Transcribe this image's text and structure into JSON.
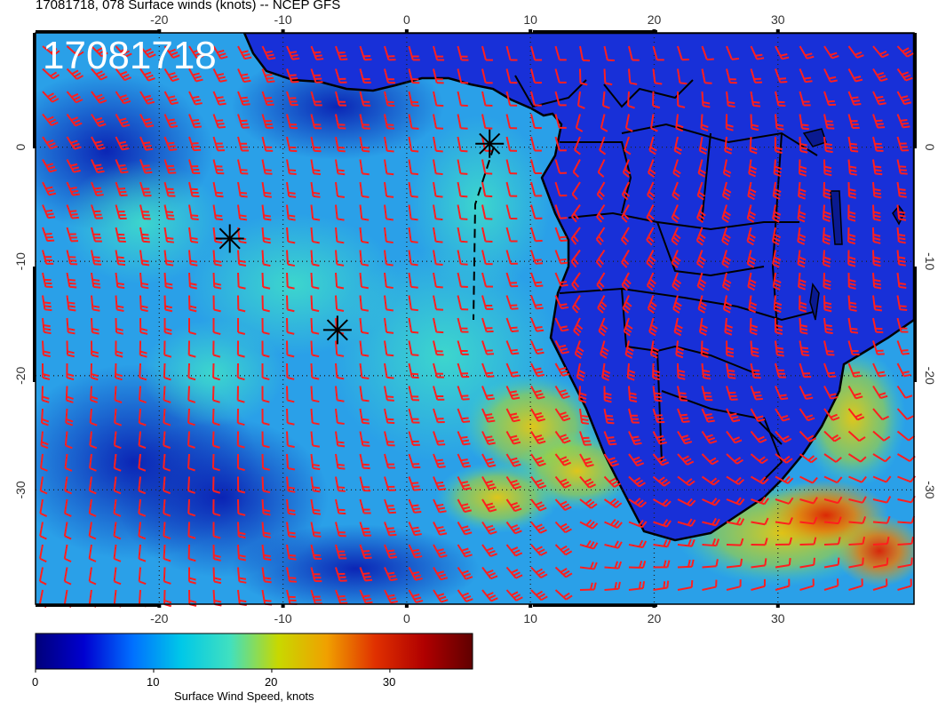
{
  "title": "17081718, 078 Surface winds (knots) -- NCEP GFS",
  "stamp": "17081718",
  "map": {
    "lon_range": [
      -30,
      41
    ],
    "lat_range": [
      -40,
      10
    ],
    "lon_ticks": [
      "-20",
      "-10",
      "0",
      "10",
      "20",
      "30"
    ],
    "lon_tick_values": [
      -20,
      -10,
      0,
      10,
      20,
      30
    ],
    "lat_ticks": [
      "0",
      "-10",
      "-20",
      "-30"
    ],
    "lat_tick_values": [
      0,
      -10,
      -20,
      -30
    ],
    "markers": [
      {
        "lon": 6.7,
        "lat": 0.3
      },
      {
        "lon": -14.3,
        "lat": -8.0
      },
      {
        "lon": -5.6,
        "lat": -16.0
      }
    ],
    "wind_barb_color": "#ff1e1e",
    "land_color": "#1028d8",
    "ocean_color": "#2aa8e8"
  },
  "colorbar": {
    "title": "Surface Wind Speed, knots",
    "labels": [
      "0",
      "10",
      "20",
      "30"
    ],
    "label_values": [
      0,
      10,
      20,
      30
    ],
    "range": [
      0,
      37
    ],
    "colors": [
      "#00007a",
      "#0000d0",
      "#0070ff",
      "#00c8e8",
      "#40e0c0",
      "#c8d800",
      "#f0a000",
      "#e03000",
      "#b00000",
      "#600000"
    ]
  }
}
